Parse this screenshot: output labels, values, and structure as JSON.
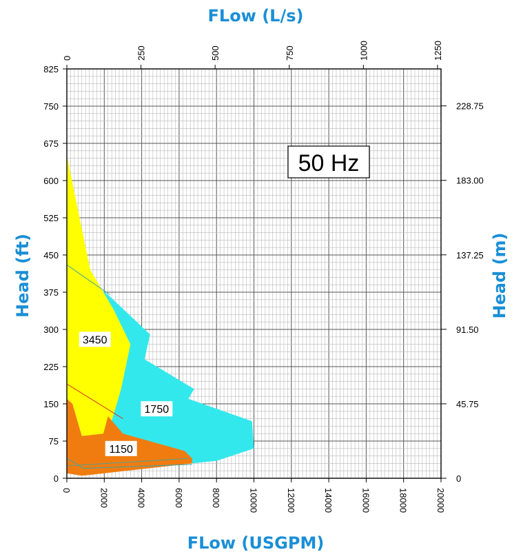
{
  "chart_data": {
    "type": "area",
    "title": "50 Hz",
    "xlabel_top": "FLow (L/s)",
    "xlabel_bottom": "FLow (USGPM)",
    "ylabel_left": "Head (ft)",
    "ylabel_right": "Head (m)",
    "x_bottom_ticks": [
      "0",
      "2000",
      "4000",
      "6000",
      "8000",
      "10000",
      "12000",
      "14000",
      "16000",
      "18000",
      "20000"
    ],
    "x_top_ticks": [
      "0",
      "250",
      "500",
      "750",
      "1000",
      "1250"
    ],
    "y_left_ticks": [
      "0",
      "75",
      "150",
      "225",
      "300",
      "375",
      "450",
      "525",
      "600",
      "675",
      "750",
      "825"
    ],
    "y_right_ticks": [
      "0",
      "45.75",
      "91.50",
      "137.25",
      "183.00",
      "228.75"
    ],
    "xlim": [
      0,
      20000
    ],
    "ylim": [
      0,
      825
    ],
    "grid": true,
    "series": [
      {
        "name": "1750",
        "color": "#33e8ec",
        "points": [
          [
            0,
            430
          ],
          [
            2200,
            370
          ],
          [
            4450,
            290
          ],
          [
            4150,
            240
          ],
          [
            6800,
            180
          ],
          [
            6500,
            160
          ],
          [
            9900,
            115
          ],
          [
            10000,
            60
          ],
          [
            8000,
            35
          ],
          [
            6700,
            30
          ],
          [
            4200,
            40
          ],
          [
            2800,
            30
          ],
          [
            2100,
            60
          ]
        ]
      },
      {
        "name": "3450",
        "color": "#ffff00",
        "points": [
          [
            0,
            650
          ],
          [
            1250,
            420
          ],
          [
            2500,
            340
          ],
          [
            3400,
            270
          ],
          [
            2900,
            180
          ],
          [
            2200,
            90
          ],
          [
            800,
            85
          ],
          [
            300,
            150
          ],
          [
            0,
            160
          ]
        ]
      },
      {
        "name": "1150",
        "color": "#f07c10",
        "points": [
          [
            0,
            160
          ],
          [
            0,
            10
          ],
          [
            800,
            5
          ],
          [
            6700,
            30
          ],
          [
            6700,
            40
          ],
          [
            6300,
            55
          ],
          [
            3000,
            90
          ],
          [
            2200,
            125
          ],
          [
            1950,
            90
          ],
          [
            800,
            85
          ],
          [
            300,
            150
          ]
        ]
      }
    ]
  }
}
